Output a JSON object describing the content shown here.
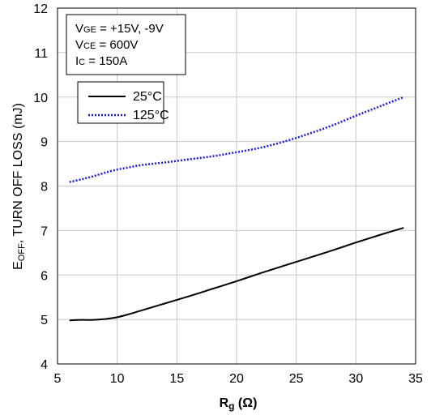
{
  "chart_data": {
    "type": "line",
    "xlabel_main": "R",
    "xlabel_sub": "g",
    "xlabel_unit": " (Ω)",
    "ylabel_main": "E",
    "ylabel_sub": "OFF",
    "ylabel_rest": ", TURN OFF LOSS (mJ)",
    "xlim": [
      5,
      35
    ],
    "ylim": [
      4,
      12
    ],
    "xticks": [
      5,
      10,
      15,
      20,
      25,
      30,
      35
    ],
    "yticks": [
      4,
      5,
      6,
      7,
      8,
      9,
      10,
      11,
      12
    ],
    "grid": true,
    "legend_position": "upper-left",
    "conditions": [
      {
        "main": "V",
        "sub": "GE",
        "rest": " = +15V, -9V"
      },
      {
        "main": "V",
        "sub": "CE",
        "rest": " = 600V"
      },
      {
        "main": "I",
        "sub": "C",
        "rest": " = 150A"
      }
    ],
    "series": [
      {
        "name": "25°C",
        "color": "#000000",
        "style": "solid",
        "x": [
          6,
          7,
          8,
          9,
          10,
          11,
          12,
          14,
          16,
          18,
          20,
          22,
          24,
          26,
          28,
          30,
          32,
          34
        ],
        "y": [
          4.98,
          4.99,
          4.99,
          5.01,
          5.05,
          5.12,
          5.2,
          5.36,
          5.52,
          5.69,
          5.86,
          6.04,
          6.21,
          6.38,
          6.55,
          6.73,
          6.9,
          7.06
        ]
      },
      {
        "name": "125°C",
        "color": "#1a1adc",
        "style": "dotted",
        "x": [
          6,
          7,
          8,
          9,
          10,
          11,
          12,
          14,
          16,
          18,
          20,
          22,
          24,
          26,
          28,
          30,
          32,
          34
        ],
        "y": [
          8.09,
          8.15,
          8.22,
          8.3,
          8.37,
          8.42,
          8.47,
          8.53,
          8.6,
          8.67,
          8.76,
          8.86,
          9.0,
          9.17,
          9.36,
          9.58,
          9.79,
          10.0
        ]
      }
    ]
  }
}
